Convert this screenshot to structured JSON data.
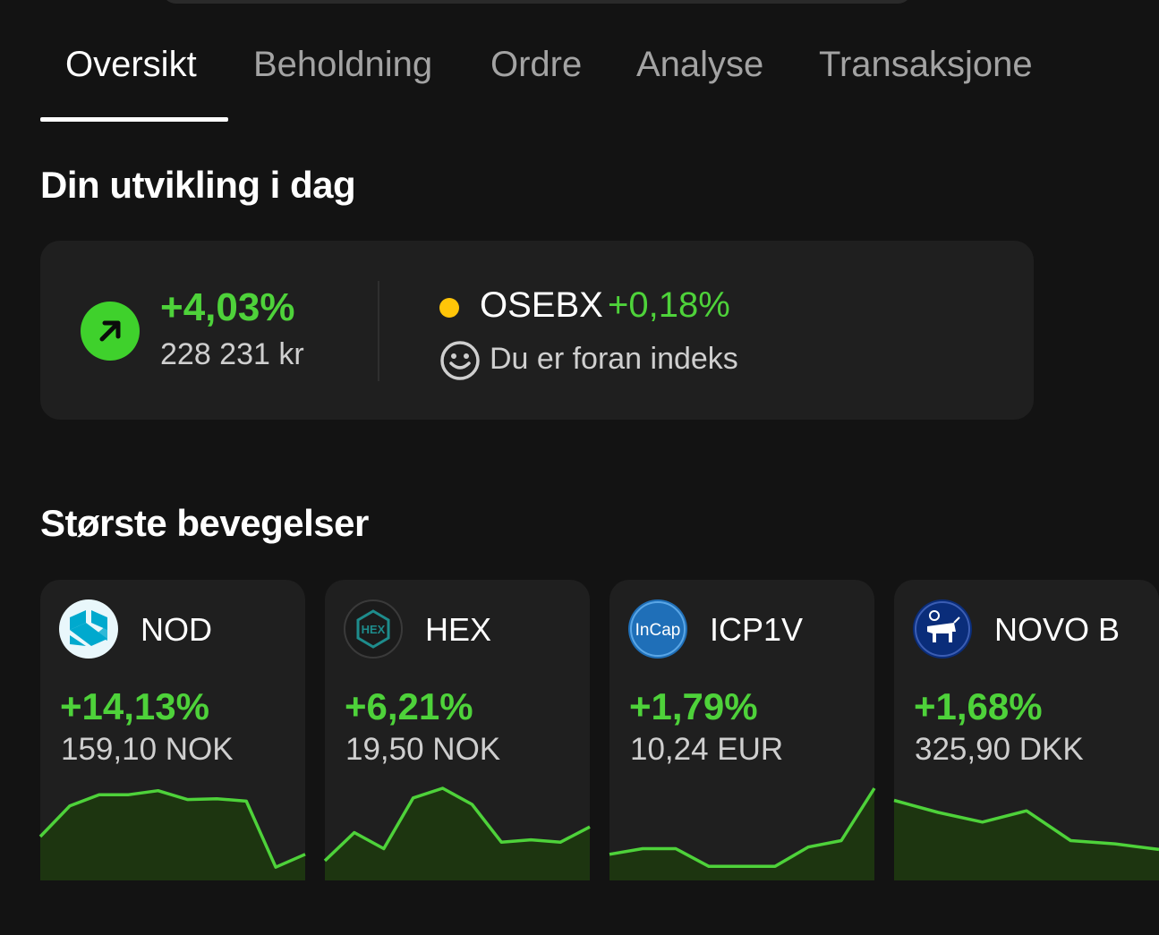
{
  "colors": {
    "background": "#131313",
    "card": "#1f1f1f",
    "positive": "#4ed23a",
    "index_dot": "#ffc508",
    "spark_fill": "#1d3510"
  },
  "tabs": [
    {
      "label": "Oversikt",
      "active": true
    },
    {
      "label": "Beholdning",
      "active": false
    },
    {
      "label": "Ordre",
      "active": false
    },
    {
      "label": "Analyse",
      "active": false
    },
    {
      "label": "Transaksjone",
      "active": false
    }
  ],
  "today": {
    "title": "Din utvikling i dag",
    "icon": "arrow-up-right-icon",
    "change_pct": "+4,03%",
    "value": "228 231 kr",
    "index": {
      "name": "OSEBX",
      "change_pct": "+0,18%",
      "status_icon": "smiley-icon",
      "status_text": "Du er foran indeks"
    }
  },
  "movers": {
    "title": "Største bevegelser",
    "items": [
      {
        "ticker": "NOD",
        "logo": "nordic-semiconductor-logo",
        "change_pct": "+14,13%",
        "price": "159,10 NOK",
        "spark": [
          0.4,
          0.78,
          0.92,
          0.92,
          0.97,
          0.86,
          0.87,
          0.84,
          0.02,
          0.18
        ]
      },
      {
        "ticker": "HEX",
        "logo": "hexagon-composites-logo",
        "change_pct": "+6,21%",
        "price": "19,50 NOK",
        "spark": [
          0.1,
          0.45,
          0.25,
          0.88,
          1.0,
          0.8,
          0.33,
          0.36,
          0.33,
          0.52
        ]
      },
      {
        "ticker": "ICP1V",
        "logo": "incap-logo",
        "change_pct": "+1,79%",
        "price": "10,24 EUR",
        "spark": [
          0.18,
          0.25,
          0.25,
          0.03,
          0.03,
          0.03,
          0.27,
          0.35,
          1.0
        ]
      },
      {
        "ticker": "NOVO B",
        "logo": "novo-nordisk-logo",
        "change_pct": "+1,68%",
        "price": "325,90 DKK",
        "spark": [
          0.85,
          0.7,
          0.58,
          0.72,
          0.35,
          0.31,
          0.24
        ]
      }
    ]
  }
}
